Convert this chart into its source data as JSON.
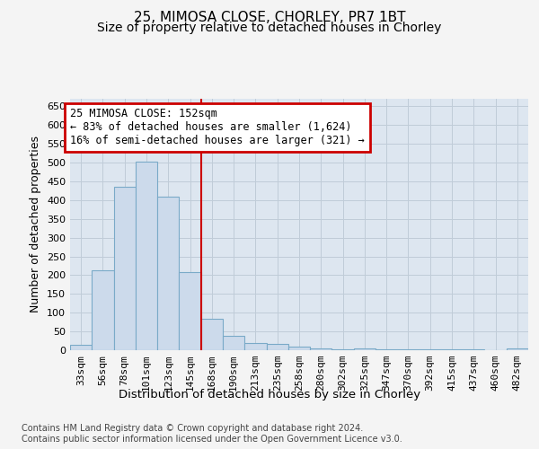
{
  "title_line1": "25, MIMOSA CLOSE, CHORLEY, PR7 1BT",
  "title_line2": "Size of property relative to detached houses in Chorley",
  "xlabel": "Distribution of detached houses by size in Chorley",
  "ylabel": "Number of detached properties",
  "footer_line1": "Contains HM Land Registry data © Crown copyright and database right 2024.",
  "footer_line2": "Contains public sector information licensed under the Open Government Licence v3.0.",
  "categories": [
    "33sqm",
    "56sqm",
    "78sqm",
    "101sqm",
    "123sqm",
    "145sqm",
    "168sqm",
    "190sqm",
    "213sqm",
    "235sqm",
    "258sqm",
    "280sqm",
    "302sqm",
    "325sqm",
    "347sqm",
    "370sqm",
    "392sqm",
    "415sqm",
    "437sqm",
    "460sqm",
    "482sqm"
  ],
  "values": [
    15,
    213,
    435,
    502,
    408,
    208,
    83,
    38,
    18,
    17,
    10,
    5,
    3,
    5,
    3,
    3,
    3,
    3,
    3,
    0,
    4
  ],
  "bar_color": "#ccdaeb",
  "bar_edge_color": "#7aaac8",
  "bar_linewidth": 0.8,
  "vline_x": 5.5,
  "vline_color": "#cc0000",
  "annotation_title": "25 MIMOSA CLOSE: 152sqm",
  "annotation_line1": "← 83% of detached houses are smaller (1,624)",
  "annotation_line2": "16% of semi-detached houses are larger (321) →",
  "annotation_box_color": "#cc0000",
  "annotation_bg": "#ffffff",
  "ylim": [
    0,
    670
  ],
  "yticks": [
    0,
    50,
    100,
    150,
    200,
    250,
    300,
    350,
    400,
    450,
    500,
    550,
    600,
    650
  ],
  "grid_color": "#c0ccd8",
  "bg_color": "#dde6f0",
  "fig_bg_color": "#f4f4f4",
  "title_fontsize": 11,
  "subtitle_fontsize": 10,
  "tick_fontsize": 8,
  "ylabel_fontsize": 9,
  "xlabel_fontsize": 9.5,
  "ann_fontsize": 8.5,
  "footer_fontsize": 7
}
